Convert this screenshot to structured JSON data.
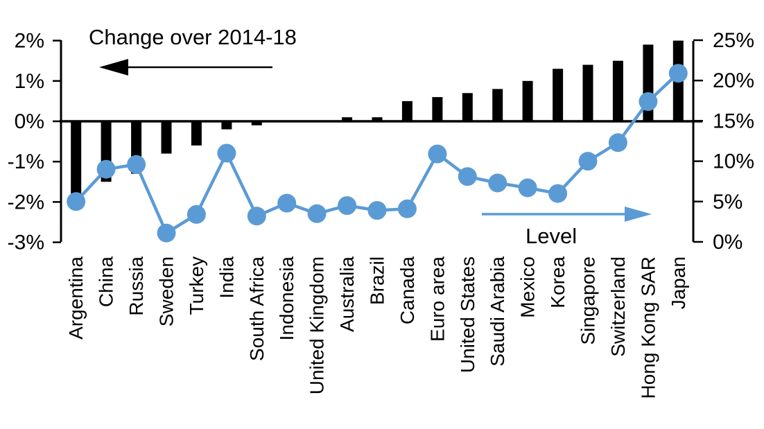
{
  "page": {
    "background": "#ffffff"
  },
  "chart_data": {
    "type": "combo-bar-line",
    "title": "",
    "categories": [
      "Argentina",
      "China",
      "Russia",
      "Sweden",
      "Turkey",
      "India",
      "South Africa",
      "Indonesia",
      "United Kingdom",
      "Australia",
      "Brazil",
      "Canada",
      "Euro area",
      "United States",
      "Saudi Arabia",
      "Mexico",
      "Korea",
      "Singapore",
      "Switzerland",
      "Hong Kong SAR",
      "Japan"
    ],
    "series": [
      {
        "name": "Change over 2014-18",
        "type": "bar",
        "axis": "left",
        "color": "#000000",
        "values": [
          -2.0,
          -1.5,
          -1.3,
          -0.8,
          -0.6,
          -0.2,
          -0.1,
          0.0,
          0.0,
          0.1,
          0.1,
          0.5,
          0.6,
          0.7,
          0.8,
          1.0,
          1.3,
          1.4,
          1.5,
          1.9,
          2.0
        ]
      },
      {
        "name": "Level",
        "type": "line",
        "axis": "right",
        "color": "#5B9BD5",
        "values": [
          5.0,
          9.0,
          9.6,
          1.1,
          3.4,
          11.0,
          3.2,
          4.8,
          3.5,
          4.5,
          3.9,
          4.1,
          10.9,
          8.1,
          7.3,
          6.7,
          6.0,
          10.0,
          12.3,
          17.4,
          20.9
        ]
      }
    ],
    "left_axis": {
      "tick_labels": [
        "2%",
        "1%",
        "0%",
        "-1%",
        "-2%",
        "-3%"
      ],
      "tick_values": [
        2,
        1,
        0,
        -1,
        -2,
        -3
      ],
      "min": -3,
      "max": 2
    },
    "right_axis": {
      "tick_labels": [
        "25%",
        "20%",
        "15%",
        "10%",
        "5%",
        "0%"
      ],
      "tick_values": [
        25,
        20,
        15,
        10,
        5,
        0
      ],
      "min": 0,
      "max": 25
    },
    "grid": false,
    "legend_position": "in-plot arrow annotations",
    "annotations": {
      "bar_series_label": {
        "text": "Change over 2014-18",
        "arrow_direction": "left",
        "color": "#000000"
      },
      "line_series_label": {
        "text": "Level",
        "arrow_direction": "right",
        "color": "#5B9BD5"
      }
    }
  }
}
